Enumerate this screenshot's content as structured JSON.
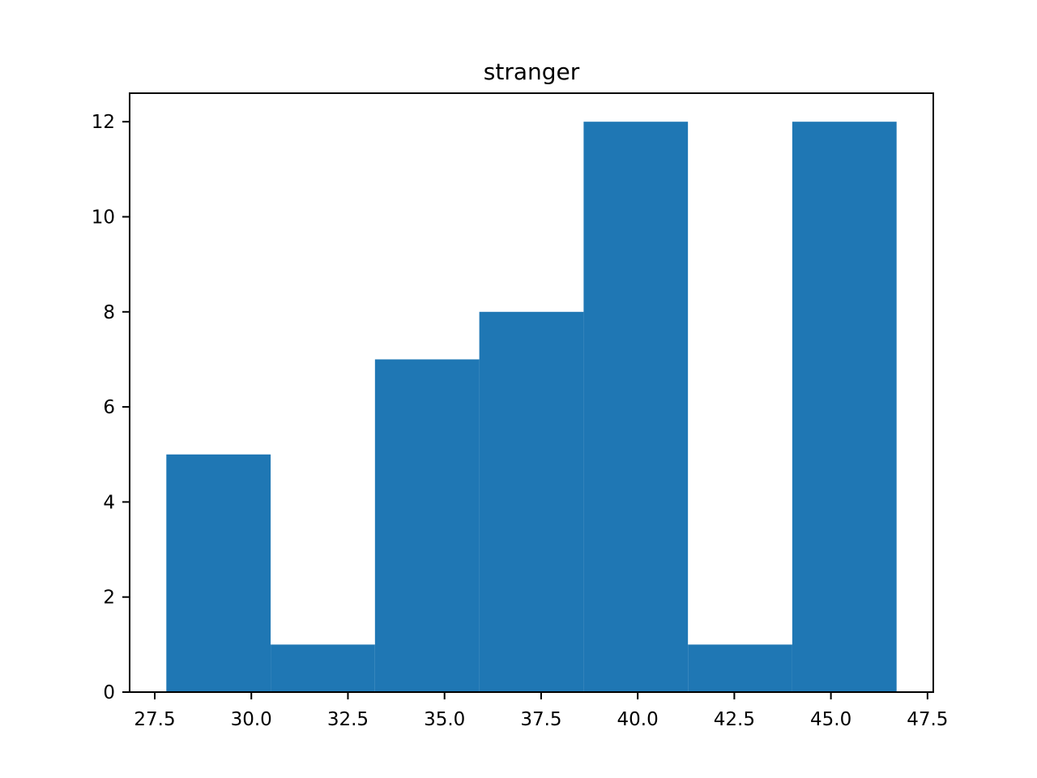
{
  "chart_data": {
    "type": "bar",
    "title": "stranger",
    "xlabel": "",
    "ylabel": "",
    "bin_edges": [
      27.8,
      30.5,
      33.2,
      35.9,
      38.6,
      41.3,
      44.0,
      46.7
    ],
    "values": [
      5,
      1,
      7,
      8,
      12,
      1,
      12
    ],
    "xlim": [
      26.85,
      47.65
    ],
    "ylim": [
      0,
      12.6
    ],
    "x_ticks": [
      27.5,
      30.0,
      32.5,
      35.0,
      37.5,
      40.0,
      42.5,
      45.0,
      47.5
    ],
    "x_tick_labels": [
      "27.5",
      "30.0",
      "32.5",
      "35.0",
      "37.5",
      "40.0",
      "42.5",
      "45.0",
      "47.5"
    ],
    "y_ticks": [
      0,
      2,
      4,
      6,
      8,
      10,
      12
    ],
    "y_tick_labels": [
      "0",
      "2",
      "4",
      "6",
      "8",
      "10",
      "12"
    ],
    "bar_color": "#1f77b4",
    "grid": false,
    "legend": "none"
  }
}
